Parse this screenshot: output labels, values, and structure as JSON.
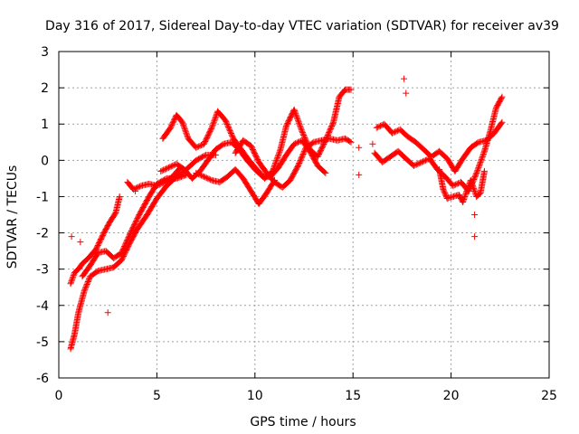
{
  "chart_data": {
    "type": "scatter",
    "title": "Day 316 of 2017, Sidereal Day-to-day VTEC variation (SDTVAR) for receiver av39",
    "xlabel": "GPS time / hours",
    "ylabel": "SDTVAR / TECUs",
    "xlim": [
      0,
      25
    ],
    "ylim": [
      -6,
      3
    ],
    "xticks": [
      0,
      5,
      10,
      15,
      20,
      25
    ],
    "yticks": [
      -6,
      -5,
      -4,
      -3,
      -2,
      -1,
      0,
      1,
      2,
      3
    ],
    "grid": true,
    "marker": "+",
    "series": [
      {
        "name": "SDTVAR",
        "color": "#ff0000",
        "segments": [
          [
            [
              0.6,
              -5.2
            ],
            [
              0.8,
              -4.8
            ],
            [
              1.0,
              -4.2
            ],
            [
              1.3,
              -3.6
            ],
            [
              1.6,
              -3.2
            ],
            [
              2.0,
              -3.05
            ],
            [
              2.4,
              -3.0
            ],
            [
              2.8,
              -2.95
            ],
            [
              3.2,
              -2.75
            ],
            [
              3.6,
              -2.3
            ],
            [
              4.0,
              -1.9
            ],
            [
              4.5,
              -1.5
            ],
            [
              5.0,
              -1.05
            ],
            [
              5.5,
              -0.7
            ],
            [
              6.0,
              -0.45
            ],
            [
              6.5,
              -0.25
            ],
            [
              7.0,
              0.0
            ],
            [
              7.5,
              0.15
            ],
            [
              8.0,
              0.15
            ]
          ],
          [
            [
              0.6,
              -3.4
            ],
            [
              0.8,
              -3.1
            ],
            [
              1.0,
              -3.0
            ],
            [
              1.2,
              -2.85
            ],
            [
              1.5,
              -2.7
            ],
            [
              1.9,
              -2.45
            ],
            [
              2.3,
              -2.0
            ],
            [
              2.6,
              -1.7
            ],
            [
              2.9,
              -1.45
            ],
            [
              3.1,
              -1.0
            ]
          ],
          [
            [
              1.2,
              -3.2
            ],
            [
              1.6,
              -2.9
            ],
            [
              2.0,
              -2.55
            ],
            [
              2.4,
              -2.5
            ],
            [
              2.8,
              -2.7
            ],
            [
              3.2,
              -2.55
            ],
            [
              3.7,
              -1.95
            ],
            [
              4.1,
              -1.5
            ],
            [
              4.6,
              -1.0
            ],
            [
              5.0,
              -0.65
            ],
            [
              5.5,
              -0.5
            ],
            [
              6.0,
              -0.5
            ],
            [
              6.5,
              -0.4
            ]
          ],
          [
            [
              3.5,
              -0.6
            ],
            [
              3.8,
              -0.8
            ],
            [
              4.2,
              -0.7
            ],
            [
              4.6,
              -0.65
            ],
            [
              5.0,
              -0.7
            ],
            [
              5.4,
              -0.6
            ],
            [
              5.8,
              -0.45
            ],
            [
              6.2,
              -0.2
            ]
          ],
          [
            [
              5.2,
              -0.3
            ],
            [
              5.6,
              -0.2
            ],
            [
              6.0,
              -0.1
            ],
            [
              6.4,
              -0.25
            ],
            [
              6.8,
              -0.5
            ],
            [
              7.2,
              -0.3
            ],
            [
              7.6,
              0.0
            ],
            [
              8.0,
              0.3
            ],
            [
              8.4,
              0.45
            ],
            [
              8.8,
              0.5
            ],
            [
              9.2,
              0.3
            ],
            [
              9.6,
              0.0
            ],
            [
              10.0,
              -0.25
            ],
            [
              10.4,
              -0.45
            ],
            [
              10.8,
              -0.45
            ],
            [
              11.2,
              -0.2
            ],
            [
              11.6,
              0.15
            ],
            [
              12.0,
              0.45
            ],
            [
              12.4,
              0.55
            ],
            [
              12.8,
              0.25
            ],
            [
              13.2,
              -0.15
            ],
            [
              13.6,
              -0.35
            ]
          ],
          [
            [
              5.3,
              0.6
            ],
            [
              5.7,
              0.9
            ],
            [
              6.0,
              1.25
            ],
            [
              6.3,
              1.05
            ],
            [
              6.6,
              0.6
            ],
            [
              7.0,
              0.35
            ],
            [
              7.4,
              0.45
            ],
            [
              7.8,
              0.9
            ],
            [
              8.1,
              1.35
            ],
            [
              8.5,
              1.1
            ],
            [
              8.9,
              0.6
            ],
            [
              9.3,
              0.3
            ],
            [
              9.7,
              0.0
            ],
            [
              10.1,
              -0.25
            ],
            [
              10.5,
              -0.5
            ],
            [
              10.9,
              -0.3
            ],
            [
              11.3,
              0.3
            ],
            [
              11.6,
              0.95
            ],
            [
              12.0,
              1.4
            ],
            [
              12.4,
              0.8
            ],
            [
              12.8,
              0.3
            ],
            [
              13.2,
              0.1
            ],
            [
              13.6,
              0.55
            ],
            [
              14.0,
              1.05
            ],
            [
              14.3,
              1.75
            ],
            [
              14.6,
              1.95
            ],
            [
              14.9,
              1.95
            ]
          ],
          [
            [
              9.0,
              0.2
            ],
            [
              9.4,
              0.55
            ],
            [
              9.8,
              0.4
            ],
            [
              10.2,
              -0.05
            ],
            [
              10.6,
              -0.35
            ],
            [
              11.0,
              -0.6
            ],
            [
              11.4,
              -0.75
            ],
            [
              11.8,
              -0.55
            ],
            [
              12.2,
              -0.15
            ],
            [
              12.6,
              0.35
            ],
            [
              13.0,
              0.5
            ],
            [
              13.4,
              0.55
            ],
            [
              13.8,
              0.6
            ],
            [
              14.2,
              0.55
            ],
            [
              14.6,
              0.6
            ],
            [
              14.9,
              0.5
            ]
          ],
          [
            [
              7.0,
              -0.35
            ],
            [
              7.4,
              -0.45
            ],
            [
              7.8,
              -0.55
            ],
            [
              8.2,
              -0.6
            ],
            [
              8.6,
              -0.45
            ],
            [
              9.0,
              -0.25
            ],
            [
              9.4,
              -0.5
            ],
            [
              9.8,
              -0.85
            ],
            [
              10.2,
              -1.2
            ],
            [
              10.6,
              -0.9
            ],
            [
              11.0,
              -0.55
            ]
          ],
          [
            [
              16.2,
              0.9
            ],
            [
              16.6,
              1.0
            ],
            [
              17.0,
              0.75
            ],
            [
              17.4,
              0.85
            ],
            [
              17.8,
              0.65
            ],
            [
              18.2,
              0.5
            ],
            [
              18.6,
              0.3
            ],
            [
              19.0,
              0.1
            ],
            [
              19.4,
              0.25
            ],
            [
              19.8,
              0.05
            ],
            [
              20.2,
              -0.3
            ],
            [
              20.6,
              0.05
            ],
            [
              21.0,
              0.35
            ],
            [
              21.4,
              0.5
            ],
            [
              21.8,
              0.55
            ],
            [
              22.2,
              0.75
            ],
            [
              22.6,
              1.05
            ]
          ],
          [
            [
              16.1,
              0.2
            ],
            [
              16.5,
              -0.05
            ],
            [
              16.9,
              0.1
            ],
            [
              17.3,
              0.25
            ],
            [
              17.7,
              0.05
            ],
            [
              18.1,
              -0.15
            ],
            [
              18.5,
              -0.05
            ],
            [
              18.9,
              0.05
            ],
            [
              19.3,
              -0.25
            ],
            [
              19.7,
              -0.45
            ],
            [
              20.1,
              -0.7
            ],
            [
              20.5,
              -0.6
            ],
            [
              20.9,
              -0.85
            ],
            [
              21.3,
              -0.35
            ],
            [
              21.7,
              0.25
            ],
            [
              22.0,
              0.8
            ],
            [
              22.3,
              1.45
            ],
            [
              22.6,
              1.75
            ]
          ],
          [
            [
              19.4,
              -0.25
            ],
            [
              19.6,
              -0.8
            ],
            [
              19.8,
              -1.05
            ],
            [
              20.4,
              -0.95
            ],
            [
              20.6,
              -1.15
            ],
            [
              21.0,
              -0.55
            ],
            [
              21.3,
              -1.0
            ],
            [
              21.5,
              -0.9
            ],
            [
              21.7,
              -0.3
            ]
          ]
        ],
        "outliers": [
          [
            15.3,
            0.35
          ],
          [
            15.3,
            -0.4
          ],
          [
            17.6,
            2.25
          ],
          [
            17.7,
            1.85
          ],
          [
            21.2,
            -1.5
          ],
          [
            21.2,
            -2.1
          ],
          [
            2.5,
            -4.2
          ],
          [
            0.65,
            -2.1
          ],
          [
            1.1,
            -2.25
          ],
          [
            16.0,
            0.45
          ],
          [
            3.9,
            -0.85
          ]
        ]
      }
    ]
  }
}
